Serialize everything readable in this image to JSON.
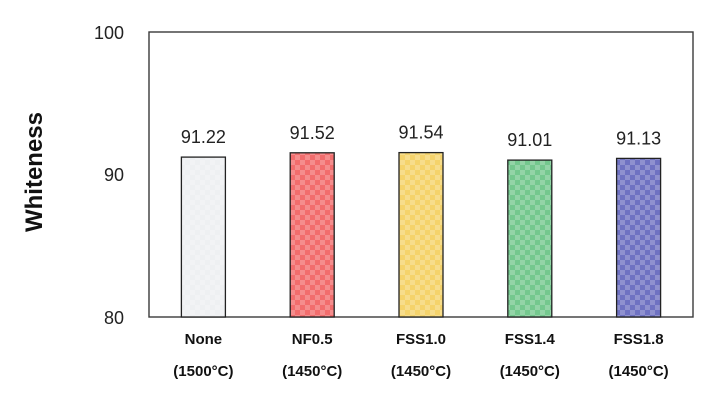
{
  "chart_data": {
    "type": "bar",
    "title": "",
    "xlabel": "",
    "ylabel": "Whiteness",
    "ylim": [
      80,
      100
    ],
    "yticks": [
      "80",
      "90",
      "100"
    ],
    "grid": false,
    "legend": "none",
    "categories": [
      {
        "name": "None",
        "condition": "(1500°C)"
      },
      {
        "name": "NF0.5",
        "condition": "(1450°C)"
      },
      {
        "name": "FSS1.0",
        "condition": "(1450°C)"
      },
      {
        "name": "FSS1.4",
        "condition": "(1450°C)"
      },
      {
        "name": "FSS1.8",
        "condition": "(1450°C)"
      }
    ],
    "values": [
      91.22,
      91.52,
      91.54,
      91.01,
      91.13
    ],
    "value_labels": [
      "91.22",
      "91.52",
      "91.54",
      "91.01",
      "91.13"
    ],
    "bar_colors": [
      "#eef0f2",
      "#f26d6d",
      "#f5d36b",
      "#74c88e",
      "#6f72c2"
    ],
    "bar_pattern": "checkered"
  }
}
